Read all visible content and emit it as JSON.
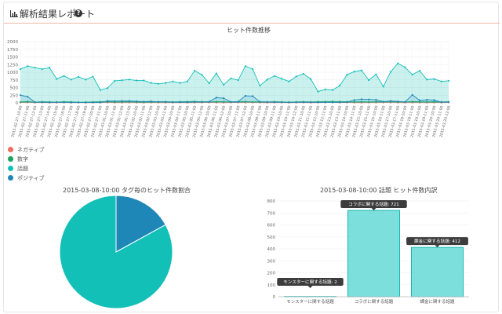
{
  "header": {
    "title": "解析結果レポート",
    "icon": "bar-chart-icon",
    "help_icon": "question-circle-icon"
  },
  "colors": {
    "negative": "#f26f5a",
    "number": "#1aa35a",
    "topic": "#12c0b8",
    "positive": "#1e87b8",
    "header_rule": "#f0b8a0"
  },
  "legend": [
    {
      "label": "ネガティブ",
      "color": "#f26f5a"
    },
    {
      "label": "数字",
      "color": "#1aa35a"
    },
    {
      "label": "話題",
      "color": "#12c0b8"
    },
    {
      "label": "ポジティブ",
      "color": "#1e87b8"
    }
  ],
  "chart_data": [
    {
      "type": "line",
      "title": "ヒット件数推移",
      "ylim": [
        0,
        2000
      ],
      "yticks": [
        0,
        250,
        500,
        750,
        1000,
        1250,
        1500,
        1750,
        2000
      ],
      "grid": true,
      "x": [
        "2015-02-27-10:00",
        "2015-02-27-11:00",
        "2015-02-27-12:00",
        "2015-02-27-13:00",
        "2015-02-27-14:00",
        "2015-02-27-15:00",
        "2015-02-27-16:00",
        "2015-02-27-17:00",
        "2015-02-27-18:00",
        "2015-02-27-19:00",
        "2015-02-27-20:00",
        "2015-02-27-21:00",
        "2015-03-01-10:00",
        "2015-03-01-11:00",
        "2015-03-01-12:00",
        "2015-03-01-13:00",
        "2015-03-02-10:00",
        "2015-03-02-11:00",
        "2015-03-02-12:00",
        "2015-03-03-10:00",
        "2015-03-03-11:00",
        "2015-03-04-10:00",
        "2015-03-04-11:00",
        "2015-03-05-10:00",
        "2015-03-05-11:00",
        "2015-03-05-12:00",
        "2015-03-06-10:00",
        "2015-03-06-11:00",
        "2015-03-06-12:00",
        "2015-03-07-10:00",
        "2015-03-07-11:00",
        "2015-03-07-12:00",
        "2015-03-08-10:00",
        "2015-03-08-11:00",
        "2015-03-09-10:00",
        "2015-03-09-11:00",
        "2015-03-10-10:00",
        "2015-03-10-11:00",
        "2015-03-10-12:00",
        "2015-03-11-10:00",
        "2015-03-11-11:00",
        "2015-03-12-10:00",
        "2015-03-12-11:00",
        "2015-03-13-10:00",
        "2015-03-13-11:00",
        "2015-03-14-10:00",
        "2015-03-14-11:00",
        "2015-03-15-10:00",
        "2015-03-15-11:00",
        "2015-03-16-10:00",
        "2015-03-16-11:00",
        "2015-03-17-10:00",
        "2015-03-17-11:00",
        "2015-03-18-10:00",
        "2015-03-18-11:00",
        "2015-03-19-10:00",
        "2015-03-19-11:00",
        "2015-03-20-10:00",
        "2015-03-20-11:00",
        "2015-03-20-12:00"
      ],
      "series": [
        {
          "name": "ネガティブ",
          "color": "#f26f5a",
          "values": [
            10,
            12,
            8,
            10,
            6,
            8,
            10,
            6,
            8,
            5,
            6,
            8,
            10,
            8,
            6,
            10,
            8,
            6,
            10,
            8,
            6,
            8,
            10,
            6,
            8,
            10,
            12,
            8,
            6,
            10,
            12,
            8,
            10,
            8,
            6,
            8,
            10,
            6,
            8,
            10,
            6,
            8,
            10,
            12,
            8,
            10,
            8,
            6,
            10,
            8,
            12,
            10,
            8,
            6,
            10,
            8,
            6,
            10,
            8,
            10
          ]
        },
        {
          "name": "数字",
          "color": "#1aa35a",
          "values": [
            30,
            40,
            25,
            35,
            30,
            25,
            35,
            30,
            20,
            25,
            30,
            35,
            40,
            30,
            35,
            40,
            30,
            25,
            30,
            35,
            40,
            30,
            35,
            40,
            45,
            35,
            30,
            40,
            35,
            30,
            35,
            40,
            30,
            35,
            30,
            35,
            30,
            25,
            30,
            35,
            30,
            35,
            40,
            45,
            40,
            35,
            30,
            35,
            30,
            35,
            40,
            45,
            35,
            30,
            40,
            35,
            30,
            35,
            30,
            35
          ]
        },
        {
          "name": "話題",
          "color": "#12c0b8",
          "values": [
            1100,
            1200,
            1150,
            1100,
            1150,
            780,
            880,
            760,
            850,
            760,
            860,
            420,
            480,
            720,
            740,
            760,
            730,
            730,
            650,
            620,
            650,
            700,
            650,
            700,
            1050,
            920,
            640,
            960,
            590,
            800,
            740,
            1200,
            1100,
            560,
            760,
            880,
            790,
            700,
            860,
            950,
            780,
            370,
            440,
            420,
            560,
            920,
            1020,
            1060,
            740,
            930,
            530,
            1010,
            1290,
            1160,
            920,
            1050,
            760,
            780,
            700,
            720
          ]
        },
        {
          "name": "ポジティブ",
          "color": "#1e87b8",
          "values": [
            250,
            200,
            20,
            20,
            15,
            20,
            15,
            10,
            15,
            10,
            15,
            10,
            60,
            55,
            60,
            60,
            50,
            40,
            50,
            30,
            30,
            20,
            25,
            20,
            30,
            30,
            40,
            170,
            150,
            30,
            40,
            230,
            220,
            30,
            30,
            25,
            20,
            15,
            20,
            25,
            20,
            15,
            20,
            15,
            20,
            25,
            90,
            120,
            110,
            100,
            40,
            60,
            45,
            30,
            260,
            80,
            100,
            90,
            20,
            30
          ]
        }
      ]
    },
    {
      "type": "pie",
      "title": "2015-03-08-10:00 タグ毎のヒット件数割合",
      "slices": [
        {
          "label": "話題",
          "value": 83,
          "color": "#12c0b8"
        },
        {
          "label": "ポジティブ",
          "value": 17,
          "color": "#1e87b8"
        }
      ]
    },
    {
      "type": "bar",
      "title": "2015-03-08-10:00 話題 ヒット件数内訳",
      "ylim": [
        0,
        800
      ],
      "yticks": [
        0,
        100,
        200,
        300,
        400,
        500,
        600,
        700,
        800
      ],
      "categories": [
        "モンスターに関する話題",
        "コラボに関する話題",
        "課金に関する話題"
      ],
      "values": [
        2,
        721,
        412
      ],
      "tooltips": [
        "モンスターに関する話題: 2",
        "コラボに関する話題: 721",
        "課金に関する話題: 412"
      ]
    }
  ]
}
